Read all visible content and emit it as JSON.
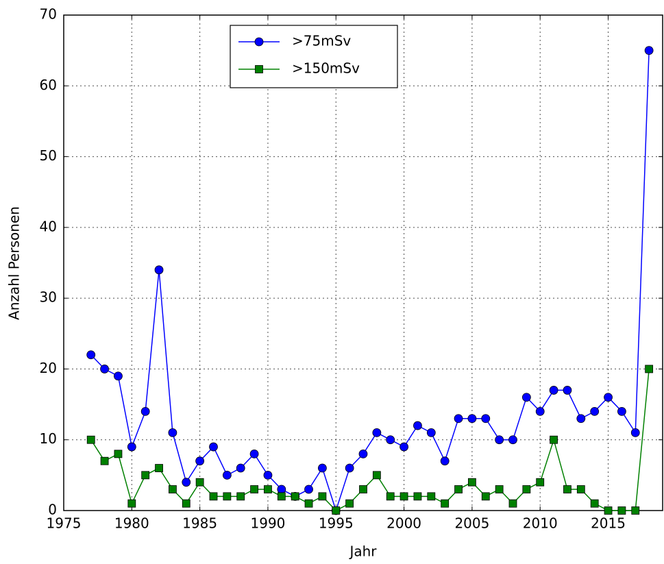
{
  "chart_data": {
    "type": "line",
    "x_label": "Jahr",
    "y_label": "Anzahl Personen",
    "x": [
      1977,
      1978,
      1979,
      1980,
      1981,
      1982,
      1983,
      1984,
      1985,
      1986,
      1987,
      1988,
      1989,
      1990,
      1991,
      1992,
      1993,
      1994,
      1995,
      1996,
      1997,
      1998,
      1999,
      2000,
      2001,
      2002,
      2003,
      2004,
      2005,
      2006,
      2007,
      2008,
      2009,
      2010,
      2011,
      2012,
      2013,
      2014,
      2015,
      2016,
      2017,
      2018
    ],
    "series": [
      {
        "name": ">75mSv",
        "color": "#0000ff",
        "marker": "circle",
        "values": [
          22,
          20,
          19,
          9,
          14,
          34,
          11,
          4,
          7,
          9,
          5,
          6,
          8,
          5,
          3,
          2,
          3,
          6,
          0,
          6,
          8,
          11,
          10,
          9,
          12,
          11,
          7,
          13,
          13,
          13,
          10,
          10,
          16,
          14,
          17,
          17,
          13,
          14,
          16,
          14,
          11,
          65
        ]
      },
      {
        "name": ">150mSv",
        "color": "#008000",
        "marker": "square",
        "values": [
          10,
          7,
          8,
          1,
          5,
          6,
          3,
          1,
          4,
          2,
          2,
          2,
          3,
          3,
          2,
          2,
          1,
          2,
          0,
          1,
          3,
          5,
          2,
          2,
          2,
          2,
          1,
          3,
          4,
          2,
          3,
          1,
          3,
          4,
          10,
          3,
          3,
          1,
          0,
          0,
          0,
          20
        ]
      }
    ],
    "xlim": [
      1975,
      2019
    ],
    "xticks": [
      1975,
      1980,
      1985,
      1990,
      1995,
      2000,
      2005,
      2010,
      2015
    ],
    "ylim": [
      0,
      70
    ],
    "yticks": [
      0,
      10,
      20,
      30,
      40,
      50,
      60,
      70
    ],
    "grid": true,
    "legend": "upper center"
  }
}
